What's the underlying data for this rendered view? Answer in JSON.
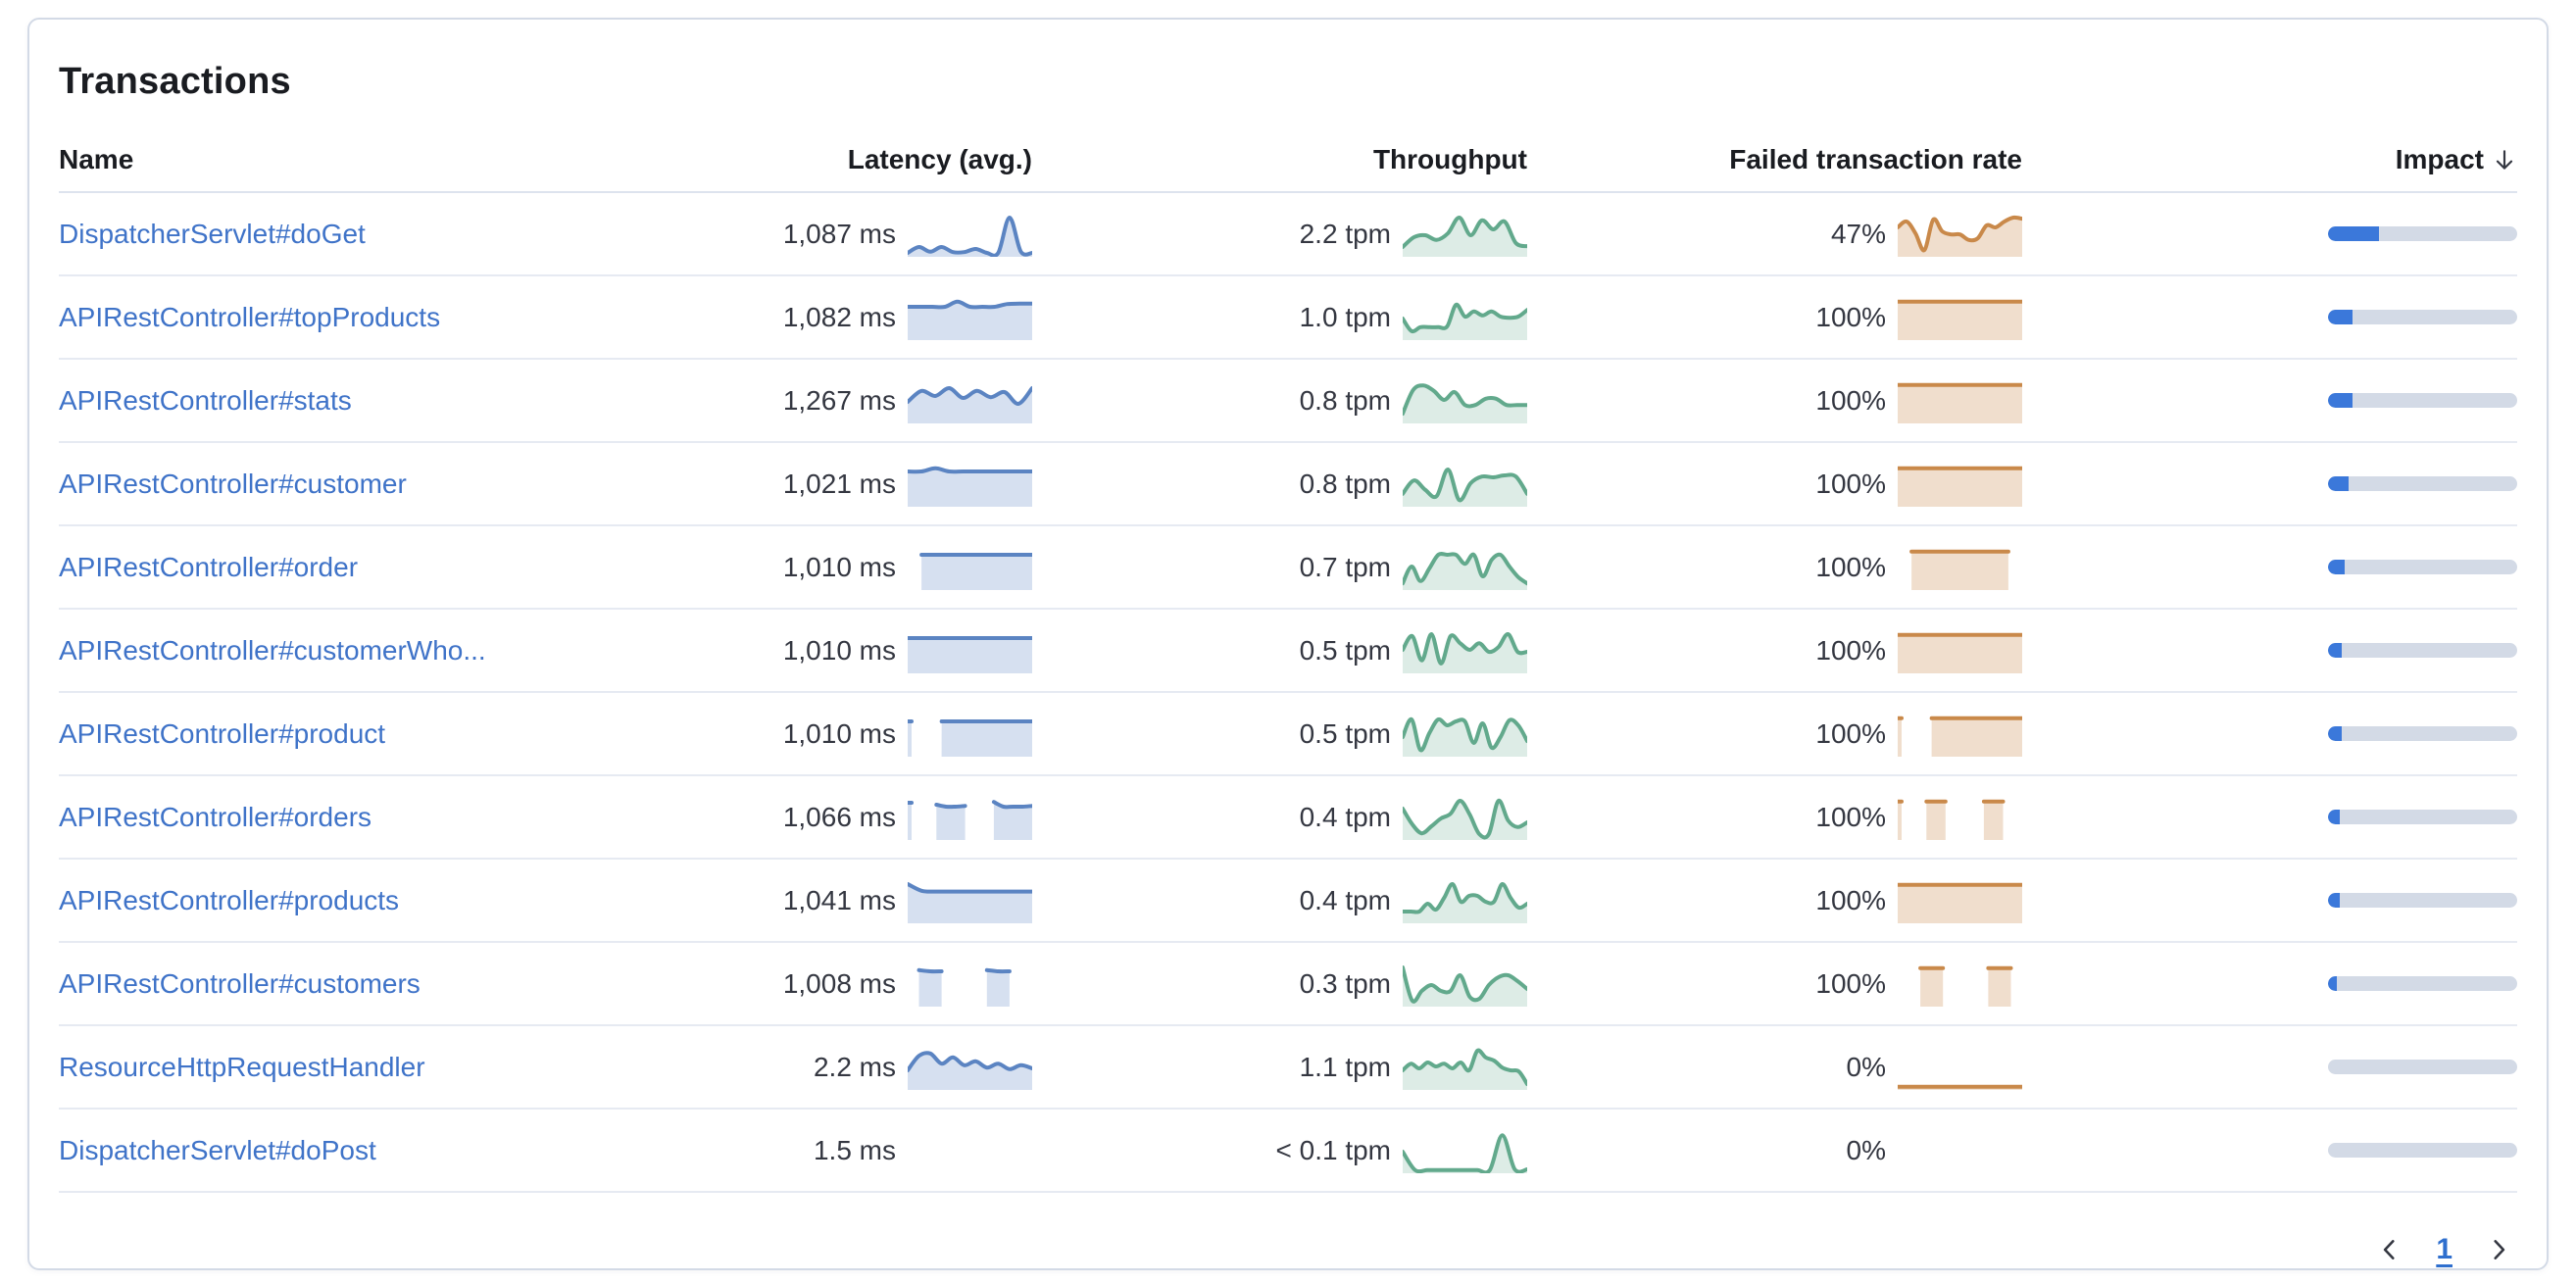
{
  "panel": {
    "title": "Transactions"
  },
  "table": {
    "columns": {
      "name": "Name",
      "latency": "Latency (avg.)",
      "throughput": "Throughput",
      "failed": "Failed transaction rate",
      "impact": "Impact"
    },
    "sort": {
      "column": "impact",
      "direction": "desc"
    },
    "rows": [
      {
        "name": "DispatcherServlet#doGet",
        "latency": "1,087 ms",
        "throughput": "2.2 tpm",
        "failed": "47%",
        "impact_pct": 27,
        "latency_spark": [
          0.05,
          0.2,
          0.08,
          0.2,
          0.07,
          0.07,
          0.15,
          0.05,
          0.05,
          0.95,
          0.08,
          0.05
        ],
        "throughput_spark": [
          0.2,
          0.45,
          0.5,
          0.38,
          0.55,
          0.95,
          0.5,
          0.88,
          0.65,
          0.85,
          0.3,
          0.22
        ],
        "failed_spark": [
          0.7,
          0.85,
          0.55,
          0.12,
          0.9,
          0.6,
          0.52,
          0.52,
          0.38,
          0.42,
          0.75,
          0.7,
          0.85,
          0.95,
          0.92
        ]
      },
      {
        "name": "APIRestController#topProducts",
        "latency": "1,082 ms",
        "throughput": "1.0 tpm",
        "failed": "100%",
        "impact_pct": 13,
        "latency_spark": [
          0.8,
          0.8,
          0.8,
          0.8,
          0.93,
          0.8,
          0.8,
          0.8,
          0.87,
          0.88,
          0.88
        ],
        "throughput_spark": [
          0.5,
          0.18,
          0.28,
          0.28,
          0.28,
          0.3,
          0.85,
          0.55,
          0.68,
          0.58,
          0.68,
          0.55,
          0.52,
          0.55,
          0.72
        ],
        "failed_spark": [
          0.93,
          0.93,
          0.93,
          0.93,
          0.93,
          0.93,
          0.93,
          0.93,
          0.93,
          0.93
        ]
      },
      {
        "name": "APIRestController#stats",
        "latency": "1,267 ms",
        "throughput": "0.8 tpm",
        "failed": "100%",
        "impact_pct": 13,
        "latency_spark": [
          0.5,
          0.78,
          0.65,
          0.85,
          0.6,
          0.78,
          0.62,
          0.75,
          0.45,
          0.85
        ],
        "throughput_spark": [
          0.2,
          0.8,
          0.92,
          0.78,
          0.55,
          0.75,
          0.42,
          0.42,
          0.58,
          0.58,
          0.42,
          0.42,
          0.42
        ],
        "failed_spark": [
          0.93,
          0.93,
          0.93,
          0.93,
          0.93,
          0.93,
          0.93,
          0.93,
          0.93,
          0.93
        ]
      },
      {
        "name": "APIRestController#customer",
        "latency": "1,021 ms",
        "throughput": "0.8 tpm",
        "failed": "100%",
        "impact_pct": 11,
        "latency_spark": [
          0.85,
          0.85,
          0.93,
          0.85,
          0.85,
          0.85,
          0.85,
          0.85,
          0.85,
          0.85
        ],
        "throughput_spark": [
          0.28,
          0.62,
          0.38,
          0.22,
          0.9,
          0.12,
          0.55,
          0.72,
          0.7,
          0.75,
          0.72,
          0.28
        ],
        "failed_spark": [
          0.93,
          0.93,
          0.93,
          0.93,
          0.93,
          0.93,
          0.93,
          0.93,
          0.93,
          0.93
        ]
      },
      {
        "name": "APIRestController#order",
        "latency": "1,010 ms",
        "throughput": "0.7 tpm",
        "failed": "100%",
        "impact_pct": 9,
        "latency_spark": [
          null,
          0.85,
          0.85,
          0.85,
          0.85,
          0.85,
          0.85,
          0.85,
          0.85,
          0.85
        ],
        "throughput_spark": [
          0.12,
          0.55,
          0.18,
          0.5,
          0.85,
          0.85,
          0.85,
          0.62,
          0.85,
          0.3,
          0.72,
          0.85,
          0.55,
          0.28,
          0.12
        ],
        "failed_spark": [
          null,
          0.93,
          0.93,
          0.93,
          0.93,
          0.93,
          0.93,
          0.93,
          0.93,
          null
        ]
      },
      {
        "name": "APIRestController#customerWho...",
        "latency": "1,010 ms",
        "throughput": "0.5 tpm",
        "failed": "100%",
        "impact_pct": 7,
        "latency_spark": [
          0.85,
          0.85,
          0.85,
          0.85,
          0.85,
          0.85,
          0.85,
          0.85,
          0.85,
          0.85
        ],
        "throughput_spark": [
          0.55,
          0.9,
          0.28,
          0.95,
          0.2,
          0.9,
          0.72,
          0.55,
          0.72,
          0.5,
          0.62,
          0.95,
          0.5,
          0.5
        ],
        "failed_spark": [
          0.93,
          0.93,
          0.93,
          0.93,
          0.93,
          0.93,
          0.93,
          0.93,
          0.93,
          0.93
        ]
      },
      {
        "name": "APIRestController#product",
        "latency": "1,010 ms",
        "throughput": "0.5 tpm",
        "failed": "100%",
        "impact_pct": 7,
        "latency_spark": [
          0.85,
          null,
          null,
          0.85,
          0.85,
          0.85,
          0.85,
          0.85,
          0.85,
          0.85,
          0.85,
          0.85
        ],
        "throughput_spark": [
          0.45,
          0.9,
          0.12,
          0.55,
          0.9,
          0.75,
          0.85,
          0.85,
          0.3,
          0.8,
          0.18,
          0.45,
          0.88,
          0.75,
          0.35
        ],
        "failed_spark": [
          0.93,
          null,
          null,
          0.93,
          0.93,
          0.93,
          0.93,
          0.93,
          0.93,
          0.93,
          0.93,
          0.93
        ]
      },
      {
        "name": "APIRestController#orders",
        "latency": "1,066 ms",
        "throughput": "0.4 tpm",
        "failed": "100%",
        "impact_pct": 6,
        "latency_spark": [
          0.9,
          null,
          null,
          0.85,
          0.8,
          0.8,
          0.82,
          null,
          null,
          0.92,
          0.8,
          0.8,
          0.8,
          0.82
        ],
        "throughput_spark": [
          0.75,
          0.35,
          0.12,
          0.3,
          0.5,
          0.62,
          0.95,
          0.6,
          0.1,
          0.1,
          0.95,
          0.45,
          0.28,
          0.4
        ],
        "failed_spark": [
          0.93,
          null,
          null,
          0.93,
          0.93,
          0.93,
          null,
          null,
          null,
          0.93,
          0.93,
          0.93,
          null,
          null
        ]
      },
      {
        "name": "APIRestController#products",
        "latency": "1,041 ms",
        "throughput": "0.4 tpm",
        "failed": "100%",
        "impact_pct": 6,
        "latency_spark": [
          0.95,
          0.78,
          0.76,
          0.76,
          0.76,
          0.76,
          0.76,
          0.76,
          0.76,
          0.76
        ],
        "throughput_spark": [
          0.25,
          0.25,
          0.25,
          0.45,
          0.3,
          0.6,
          0.95,
          0.5,
          0.65,
          0.65,
          0.5,
          0.5,
          0.95,
          0.6,
          0.35,
          0.45
        ],
        "failed_spark": [
          0.93,
          0.93,
          0.93,
          0.93,
          0.93,
          0.93,
          0.93,
          0.93,
          0.93,
          0.93
        ]
      },
      {
        "name": "APIRestController#customers",
        "latency": "1,008 ms",
        "throughput": "0.3 tpm",
        "failed": "100%",
        "impact_pct": 4.5,
        "latency_spark": [
          null,
          0.88,
          0.85,
          0.85,
          null,
          null,
          null,
          0.88,
          0.85,
          0.85,
          null,
          null
        ],
        "throughput_spark": [
          0.95,
          0.1,
          0.35,
          0.5,
          0.35,
          0.35,
          0.75,
          0.2,
          0.15,
          0.5,
          0.7,
          0.75,
          0.6,
          0.4
        ],
        "failed_spark": [
          null,
          null,
          0.93,
          0.93,
          0.93,
          null,
          null,
          null,
          0.93,
          0.93,
          0.93,
          null
        ]
      },
      {
        "name": "ResourceHttpRequestHandler",
        "latency": "2.2 ms",
        "throughput": "1.1 tpm",
        "failed": "0%",
        "impact_pct": 0,
        "latency_spark": [
          0.45,
          0.82,
          0.88,
          0.62,
          0.78,
          0.58,
          0.68,
          0.52,
          0.62,
          0.48,
          0.58,
          0.5
        ],
        "throughput_spark": [
          0.45,
          0.62,
          0.5,
          0.65,
          0.55,
          0.62,
          0.5,
          0.65,
          0.45,
          0.95,
          0.78,
          0.7,
          0.52,
          0.45,
          0.42,
          0.1
        ],
        "failed_spark": [
          0.03,
          0.03,
          0.03,
          0.03,
          0.03,
          0.03,
          0.03,
          0.03,
          0.03,
          0.03
        ]
      },
      {
        "name": "DispatcherServlet#doPost",
        "latency": "1.5 ms",
        "throughput": "< 0.1 tpm",
        "failed": "0%",
        "impact_pct": 0,
        "latency_spark": [],
        "throughput_spark": [
          0.5,
          0.03,
          0.03,
          0.03,
          0.03,
          0.03,
          0.03,
          0.03,
          0.92,
          0.05,
          0.05
        ],
        "failed_spark": []
      }
    ]
  },
  "pagination": {
    "page": "1"
  },
  "colors": {
    "link": "#3f73c8",
    "text": "#343741",
    "heading": "#1a1c21",
    "latency_line": "#5b84c2",
    "latency_fill": "rgba(91,132,194,0.25)",
    "throughput_line": "#62a98c",
    "throughput_fill": "rgba(98,169,140,0.22)",
    "failed_line": "#c9894a",
    "failed_fill": "rgba(201,137,74,0.28)",
    "impact_fill": "#3b78da",
    "impact_track": "#d3dae6"
  }
}
